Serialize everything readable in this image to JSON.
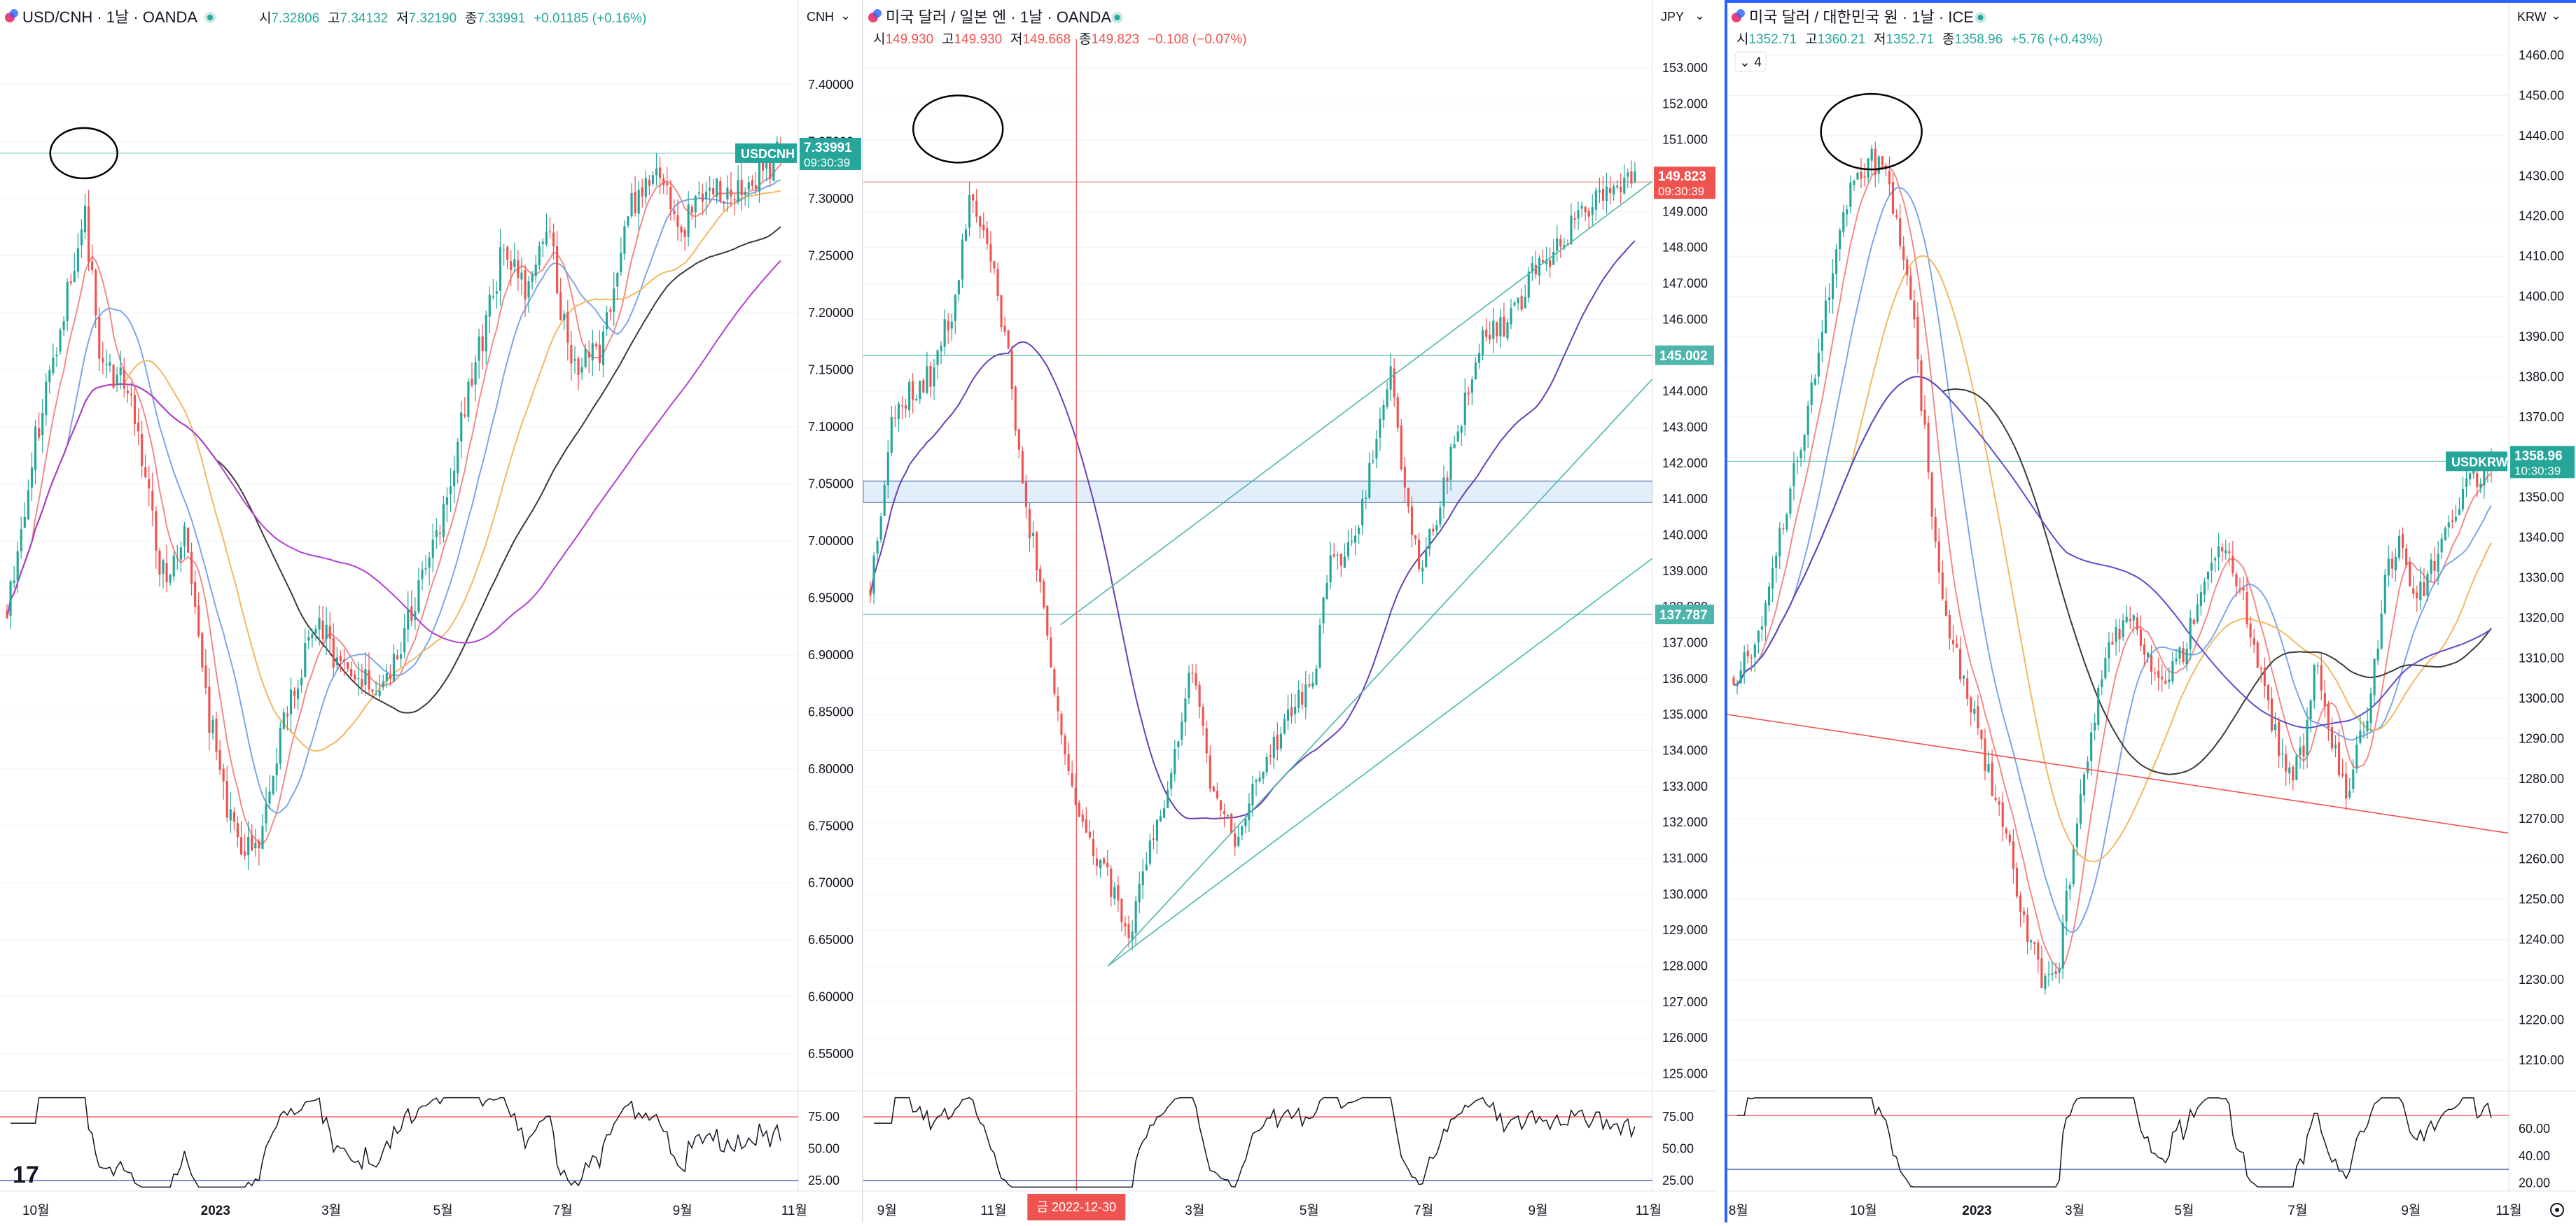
{
  "theme": {
    "up_color": "#26a69a",
    "down_color": "#ef5350",
    "grid_color": "#f0f3fa",
    "axis_text": "#131722",
    "active_border": "#2962ff",
    "ma_colors": [
      "#f28b8b",
      "#7aa7e8",
      "#f4b860",
      "#3a3a3a",
      "#b23fd0"
    ],
    "rsi_line": "#131722",
    "rsi_upper": "#ef5350",
    "rsi_lower": "#3f5bb5"
  },
  "chart_data": [
    {
      "id": "usdcnh",
      "type": "candlestick",
      "header": {
        "symbol": "USD/CNH · 1날 · OANDA",
        "ohlc": [
          {
            "label": "시",
            "value": "7.32806"
          },
          {
            "label": "고",
            "value": "7.34132"
          },
          {
            "label": "저",
            "value": "7.32190"
          },
          {
            "label": "종",
            "value": "7.33991"
          }
        ],
        "change": "+0.01185 (+0.16%)"
      },
      "currency": "CNH",
      "ylim": [
        6.52,
        7.44
      ],
      "y_ticks": [
        7.4,
        7.35,
        7.3,
        7.25,
        7.2,
        7.15,
        7.1,
        7.05,
        7.0,
        6.95,
        6.9,
        6.85,
        6.8,
        6.75,
        6.7,
        6.65,
        6.6,
        6.55
      ],
      "tick_decimals": 5,
      "x_labels": [
        {
          "label": "10월",
          "frac": 0.045
        },
        {
          "label": "2023",
          "frac": 0.27,
          "bold": true
        },
        {
          "label": "3월",
          "frac": 0.415
        },
        {
          "label": "5월",
          "frac": 0.555
        },
        {
          "label": "7월",
          "frac": 0.705
        },
        {
          "label": "9월",
          "frac": 0.855
        },
        {
          "label": "11월",
          "frac": 0.995
        }
      ],
      "keypoints": [
        [
          0,
          6.94
        ],
        [
          0.04,
          7.1
        ],
        [
          0.1,
          7.29
        ],
        [
          0.12,
          7.16
        ],
        [
          0.16,
          7.13
        ],
        [
          0.2,
          6.97
        ],
        [
          0.23,
          7.0
        ],
        [
          0.26,
          6.85
        ],
        [
          0.3,
          6.72
        ],
        [
          0.33,
          6.74
        ],
        [
          0.36,
          6.85
        ],
        [
          0.4,
          6.93
        ],
        [
          0.44,
          6.88
        ],
        [
          0.48,
          6.87
        ],
        [
          0.52,
          6.93
        ],
        [
          0.56,
          7.02
        ],
        [
          0.6,
          7.14
        ],
        [
          0.64,
          7.25
        ],
        [
          0.67,
          7.22
        ],
        [
          0.7,
          7.27
        ],
        [
          0.73,
          7.15
        ],
        [
          0.77,
          7.17
        ],
        [
          0.81,
          7.3
        ],
        [
          0.85,
          7.32
        ],
        [
          0.87,
          7.27
        ],
        [
          0.9,
          7.31
        ],
        [
          0.94,
          7.3
        ],
        [
          0.97,
          7.32
        ],
        [
          1.0,
          7.34
        ]
      ],
      "vol": 0.018,
      "seed": 11,
      "ma_spans": [
        8,
        18,
        34,
        60,
        95
      ],
      "price_tag": {
        "symbol": "USDCNH",
        "value": "7.33991",
        "time": "09:30:39",
        "color": "#26a69a",
        "price": 7.34
      },
      "hlines": [
        {
          "price": 7.34,
          "color": "#80cbc4"
        }
      ],
      "zones": [],
      "trendlines": [],
      "circle": {
        "x_frac": 0.105,
        "price": 7.34,
        "r": 48
      },
      "crosshair": null,
      "rsi": {
        "levels": [
          {
            "value": 75.0,
            "color": "#ef5350"
          },
          {
            "value": 25.0,
            "color": "#3f5bb5"
          }
        ],
        "ticks": [
          "75.00",
          "50.00",
          "25.00"
        ],
        "lim": [
          18,
          92
        ]
      },
      "logo": "17"
    },
    {
      "id": "usdjpy",
      "type": "candlestick",
      "header": {
        "symbol": "미국 달러 / 일본 엔 · 1날 · OANDA",
        "ohlc": [
          {
            "label": "시",
            "value": "149.930"
          },
          {
            "label": "고",
            "value": "149.930"
          },
          {
            "label": "저",
            "value": "149.668"
          },
          {
            "label": "종",
            "value": "149.823"
          }
        ],
        "change": "−0.108 (−0.07%)"
      },
      "currency": "JPY",
      "ylim": [
        124.6,
        153.8
      ],
      "y_ticks": [
        153,
        152,
        151,
        150,
        149,
        148,
        147,
        146,
        145,
        144,
        143,
        142,
        141,
        140,
        139,
        138,
        137,
        136,
        135,
        134,
        133,
        132,
        131,
        130,
        129,
        128,
        127,
        126,
        125
      ],
      "tick_decimals": 3,
      "x_labels": [
        {
          "label": "9월",
          "frac": 0.03
        },
        {
          "label": "11월",
          "frac": 0.165
        },
        {
          "label": "3월",
          "frac": 0.42
        },
        {
          "label": "5월",
          "frac": 0.565
        },
        {
          "label": "7월",
          "frac": 0.71
        },
        {
          "label": "9월",
          "frac": 0.855
        },
        {
          "label": "11월",
          "frac": 0.995
        }
      ],
      "keypoints": [
        [
          0,
          138.5
        ],
        [
          0.03,
          143.5
        ],
        [
          0.08,
          144.5
        ],
        [
          0.11,
          146.5
        ],
        [
          0.13,
          149.5
        ],
        [
          0.16,
          147.5
        ],
        [
          0.18,
          145.0
        ],
        [
          0.2,
          141.0
        ],
        [
          0.22,
          139.0
        ],
        [
          0.25,
          134.5
        ],
        [
          0.28,
          131.5
        ],
        [
          0.31,
          130.5
        ],
        [
          0.34,
          129.0
        ],
        [
          0.36,
          131.0
        ],
        [
          0.39,
          133.0
        ],
        [
          0.42,
          136.5
        ],
        [
          0.45,
          132.5
        ],
        [
          0.48,
          131.5
        ],
        [
          0.51,
          133.5
        ],
        [
          0.55,
          135.0
        ],
        [
          0.58,
          136.0
        ],
        [
          0.6,
          139.5
        ],
        [
          0.63,
          139.5
        ],
        [
          0.66,
          142.5
        ],
        [
          0.68,
          144.5
        ],
        [
          0.7,
          141.0
        ],
        [
          0.72,
          139.0
        ],
        [
          0.74,
          140.5
        ],
        [
          0.77,
          143.0
        ],
        [
          0.8,
          145.5
        ],
        [
          0.84,
          146.0
        ],
        [
          0.87,
          147.5
        ],
        [
          0.9,
          148.0
        ],
        [
          0.93,
          149.0
        ],
        [
          0.96,
          149.5
        ],
        [
          1.0,
          149.82
        ]
      ],
      "vol": 0.45,
      "seed": 23,
      "ma_spans": [
        40
      ],
      "ma_colors": [
        "#6a3fb5"
      ],
      "price_tag": {
        "symbol": "",
        "value": "149.823",
        "time": "09:30:39",
        "color": "#ef5350",
        "price": 149.823
      },
      "hlines": [
        {
          "price": 149.823,
          "color": "#ef9a9a"
        },
        {
          "price": 145.002,
          "color": "#4db6ac",
          "tag": "145.002"
        },
        {
          "price": 137.787,
          "color": "#4db6ac",
          "tag": "137.787"
        }
      ],
      "zones": [
        {
          "from": 140.9,
          "to": 141.5,
          "fill": "#e3eefb",
          "stroke": "#4a6fa5"
        }
      ],
      "trendlines": [
        {
          "x1": 0.25,
          "y1": 137.5,
          "x2": 1.07,
          "y2": 151.0,
          "color": "#4db6ac"
        },
        {
          "x1": 0.31,
          "y1": 128.0,
          "x2": 1.07,
          "y2": 146.0,
          "color": "#4db6ac"
        },
        {
          "x1": 0.31,
          "y1": 128.0,
          "x2": 1.07,
          "y2": 140.5,
          "color": "#4db6ac"
        }
      ],
      "circle": {
        "x_frac": 0.12,
        "price": 151.3,
        "r": 64
      },
      "crosshair": {
        "x_frac": 0.27,
        "label": "금 2022-12-30"
      },
      "rsi": {
        "levels": [
          {
            "value": 75.0,
            "color": "#ef5350"
          },
          {
            "value": 25.0,
            "color": "#3f5bb5"
          }
        ],
        "ticks": [
          "75.00",
          "50.00",
          "25.00"
        ],
        "lim": [
          18,
          92
        ]
      }
    },
    {
      "id": "usdkrw",
      "type": "candlestick",
      "header": {
        "symbol": "미국 달러 / 대한민국 원 · 1날 · ICE",
        "ohlc": [
          {
            "label": "시",
            "value": "1352.71"
          },
          {
            "label": "고",
            "value": "1360.21"
          },
          {
            "label": "저",
            "value": "1352.71"
          },
          {
            "label": "종",
            "value": "1358.96"
          }
        ],
        "change": "+5.76 (+0.43%)",
        "badge": "4"
      },
      "currency": "KRW",
      "ylim": [
        1203,
        1464
      ],
      "y_ticks": [
        1460,
        1450,
        1440,
        1430,
        1420,
        1410,
        1400,
        1390,
        1380,
        1370,
        1360,
        1350,
        1340,
        1330,
        1320,
        1310,
        1300,
        1290,
        1280,
        1270,
        1260,
        1250,
        1240,
        1230,
        1220,
        1210
      ],
      "tick_decimals": 2,
      "x_labels": [
        {
          "label": "8월",
          "frac": 0.015
        },
        {
          "label": "10월",
          "frac": 0.175
        },
        {
          "label": "2023",
          "frac": 0.32,
          "bold": true
        },
        {
          "label": "3월",
          "frac": 0.445
        },
        {
          "label": "5월",
          "frac": 0.585
        },
        {
          "label": "7월",
          "frac": 0.73
        },
        {
          "label": "9월",
          "frac": 0.875
        },
        {
          "label": "11월",
          "frac": 1.0
        }
      ],
      "keypoints": [
        [
          0,
          1305
        ],
        [
          0.03,
          1315
        ],
        [
          0.06,
          1340
        ],
        [
          0.09,
          1365
        ],
        [
          0.12,
          1395
        ],
        [
          0.15,
          1425
        ],
        [
          0.18,
          1435
        ],
        [
          0.2,
          1430
        ],
        [
          0.22,
          1415
        ],
        [
          0.24,
          1390
        ],
        [
          0.26,
          1350
        ],
        [
          0.28,
          1320
        ],
        [
          0.31,
          1300
        ],
        [
          0.33,
          1285
        ],
        [
          0.36,
          1265
        ],
        [
          0.39,
          1240
        ],
        [
          0.41,
          1228
        ],
        [
          0.43,
          1235
        ],
        [
          0.45,
          1265
        ],
        [
          0.47,
          1290
        ],
        [
          0.5,
          1315
        ],
        [
          0.53,
          1320
        ],
        [
          0.56,
          1305
        ],
        [
          0.59,
          1310
        ],
        [
          0.62,
          1330
        ],
        [
          0.65,
          1340
        ],
        [
          0.68,
          1320
        ],
        [
          0.71,
          1295
        ],
        [
          0.73,
          1280
        ],
        [
          0.75,
          1285
        ],
        [
          0.77,
          1310
        ],
        [
          0.79,
          1290
        ],
        [
          0.81,
          1275
        ],
        [
          0.84,
          1300
        ],
        [
          0.86,
          1330
        ],
        [
          0.88,
          1340
        ],
        [
          0.9,
          1325
        ],
        [
          0.93,
          1335
        ],
        [
          0.96,
          1350
        ],
        [
          1.0,
          1358.96
        ]
      ],
      "vol": 4.2,
      "seed": 37,
      "ma_spans": [
        8,
        18,
        34,
        60,
        95
      ],
      "ma_colors": [
        "#f28b8b",
        "#7aa7e8",
        "#f4b860",
        "#3a3a3a",
        "#5a4fc8"
      ],
      "price_tag": {
        "symbol": "USDKRW",
        "value": "1358.96",
        "time": "10:30:39",
        "color": "#26a69a",
        "price": 1358.96
      },
      "hlines": [
        {
          "price": 1358.96,
          "color": "#80cbc4"
        }
      ],
      "zones": [],
      "trendlines": [
        {
          "x1": 0.0,
          "y1": 1296,
          "x2": 1.15,
          "y2": 1262,
          "color": "#ef5350"
        }
      ],
      "circle": {
        "x_frac": 0.185,
        "price": 1441,
        "r": 72
      },
      "crosshair": null,
      "rsi": {
        "levels": [
          {
            "value": 70.0,
            "color": "#ef5350"
          },
          {
            "value": 30.0,
            "color": "#3f5bb5"
          }
        ],
        "ticks": [
          "60.00",
          "40.00",
          "20.00"
        ],
        "lim": [
          15,
          85
        ]
      }
    }
  ]
}
